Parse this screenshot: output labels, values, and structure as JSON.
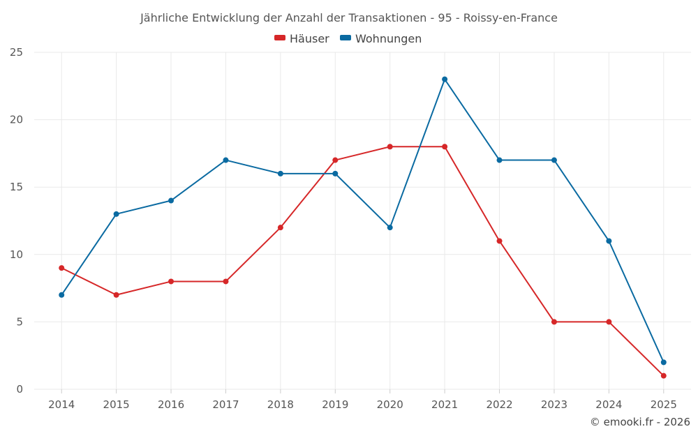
{
  "chart_data": {
    "type": "line",
    "title": "Jährliche Entwicklung der Anzahl der Transaktionen - 95 - Roissy-en-France",
    "categories": [
      "2014",
      "2015",
      "2016",
      "2017",
      "2018",
      "2019",
      "2020",
      "2021",
      "2022",
      "2023",
      "2024",
      "2025"
    ],
    "series": [
      {
        "name": "Häuser",
        "color": "#d62728",
        "values": [
          9,
          7,
          8,
          8,
          12,
          17,
          18,
          18,
          11,
          5,
          5,
          1
        ]
      },
      {
        "name": "Wohnungen",
        "color": "#0a6aa1",
        "values": [
          7,
          13,
          14,
          17,
          16,
          16,
          12,
          23,
          17,
          17,
          11,
          2
        ]
      }
    ],
    "yticks": [
      "0",
      "5",
      "10",
      "15",
      "20",
      "25"
    ],
    "ylim": [
      0,
      25
    ],
    "xlabel": "",
    "ylabel": "",
    "grid": true,
    "legend_position": "top-center"
  },
  "credit": "© emooki.fr - 2026"
}
